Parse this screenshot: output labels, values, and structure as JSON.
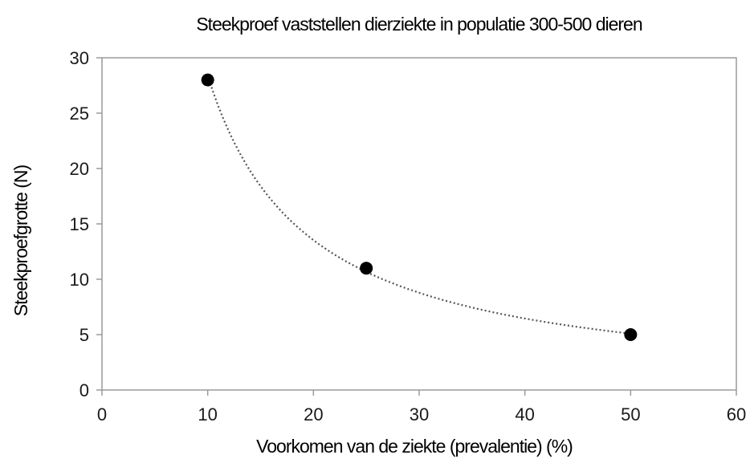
{
  "chart_data": {
    "type": "scatter",
    "title": "Steekproef vaststellen dierziekte in populatie 300-500 dieren",
    "xlabel": "Voorkomen van de ziekte (prevalentie) (%)",
    "ylabel": "Steekproefgrotte (N)",
    "xlim": [
      0,
      60
    ],
    "ylim": [
      0,
      30
    ],
    "xticks": [
      0,
      10,
      20,
      30,
      40,
      50,
      60
    ],
    "yticks": [
      0,
      5,
      10,
      15,
      20,
      25,
      30
    ],
    "grid": false,
    "trendline": "dotted",
    "series": [
      {
        "points": [
          {
            "x": 10,
            "y": 28
          },
          {
            "x": 25,
            "y": 11
          },
          {
            "x": 50,
            "y": 5
          }
        ]
      }
    ],
    "colors": {
      "marker": "#000000",
      "axis": "#9a9a9a",
      "trendline": "#555555",
      "text": "#1a1a1a"
    }
  }
}
